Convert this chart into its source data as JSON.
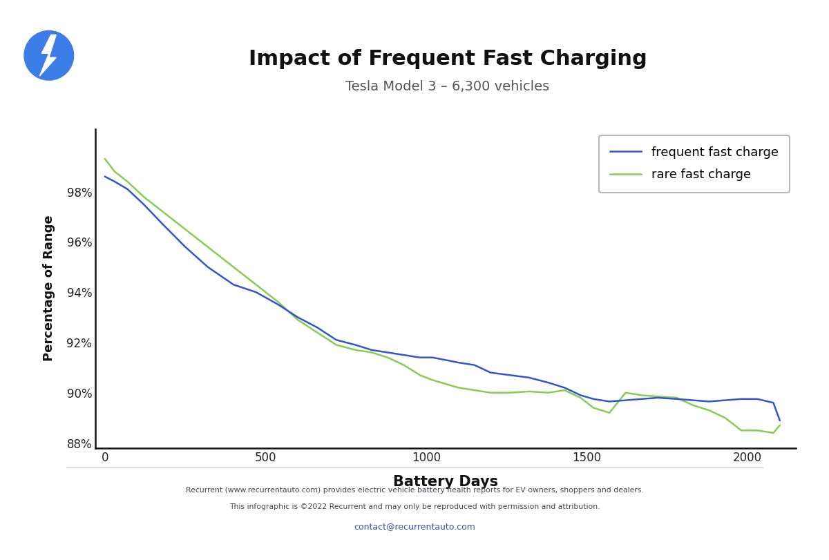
{
  "title": "Impact of Frequent Fast Charging",
  "subtitle": "Tesla Model 3 – 6,300 vehicles",
  "xlabel": "Battery Days",
  "ylabel": "Percentage of Range",
  "background_color": "#ffffff",
  "plot_bg_color": "#ffffff",
  "title_fontsize": 22,
  "subtitle_fontsize": 14,
  "xlabel_fontsize": 15,
  "ylabel_fontsize": 13,
  "ylim": [
    87.8,
    100.5
  ],
  "xlim": [
    -30,
    2150
  ],
  "yticks": [
    88,
    90,
    92,
    94,
    96,
    98
  ],
  "ytick_labels": [
    "88%",
    "90%",
    "92%",
    "94%",
    "96%",
    "98%"
  ],
  "xticks": [
    0,
    500,
    1000,
    1500,
    2000
  ],
  "frequent_x": [
    0,
    30,
    70,
    120,
    180,
    250,
    320,
    400,
    470,
    540,
    600,
    660,
    720,
    780,
    830,
    880,
    930,
    980,
    1020,
    1060,
    1100,
    1150,
    1200,
    1260,
    1320,
    1380,
    1430,
    1480,
    1520,
    1570,
    1620,
    1670,
    1720,
    1780,
    1830,
    1880,
    1930,
    1980,
    2030,
    2080,
    2100
  ],
  "frequent_y": [
    98.6,
    98.4,
    98.1,
    97.5,
    96.7,
    95.8,
    95.0,
    94.3,
    94.0,
    93.5,
    93.0,
    92.6,
    92.1,
    91.9,
    91.7,
    91.6,
    91.5,
    91.4,
    91.4,
    91.3,
    91.2,
    91.1,
    90.8,
    90.7,
    90.6,
    90.4,
    90.2,
    89.9,
    89.75,
    89.65,
    89.7,
    89.75,
    89.8,
    89.75,
    89.7,
    89.65,
    89.7,
    89.75,
    89.75,
    89.6,
    88.9
  ],
  "rare_x": [
    0,
    30,
    70,
    120,
    180,
    250,
    320,
    400,
    470,
    540,
    600,
    660,
    720,
    780,
    830,
    880,
    930,
    980,
    1020,
    1060,
    1100,
    1150,
    1200,
    1260,
    1320,
    1380,
    1430,
    1480,
    1520,
    1570,
    1620,
    1670,
    1720,
    1780,
    1830,
    1880,
    1930,
    1980,
    2030,
    2080,
    2100
  ],
  "rare_y": [
    99.3,
    98.8,
    98.4,
    97.8,
    97.2,
    96.5,
    95.8,
    95.0,
    94.3,
    93.6,
    92.9,
    92.4,
    91.9,
    91.7,
    91.6,
    91.4,
    91.1,
    90.7,
    90.5,
    90.35,
    90.2,
    90.1,
    90.0,
    90.0,
    90.05,
    90.0,
    90.1,
    89.8,
    89.4,
    89.2,
    90.0,
    89.9,
    89.85,
    89.8,
    89.5,
    89.3,
    89.0,
    88.5,
    88.5,
    88.4,
    88.7
  ],
  "frequent_color": "#3355cc",
  "rare_color": "#88cc55",
  "line_width": 1.8,
  "legend_fontsize": 13,
  "footer_text1": "Recurrent (www.recurrentauto.com) provides electric vehicle battery health reports for EV owners, shoppers and dealers.",
  "footer_text2": "This infographic is ©2022 Recurrent and may only be reproduced with permission and attribution.",
  "footer_email": "contact@recurrentauto.com",
  "footer_color": "#444455",
  "email_color": "#3355aa",
  "icon_color": "#3d7de8",
  "separator_color": "#cccccc"
}
